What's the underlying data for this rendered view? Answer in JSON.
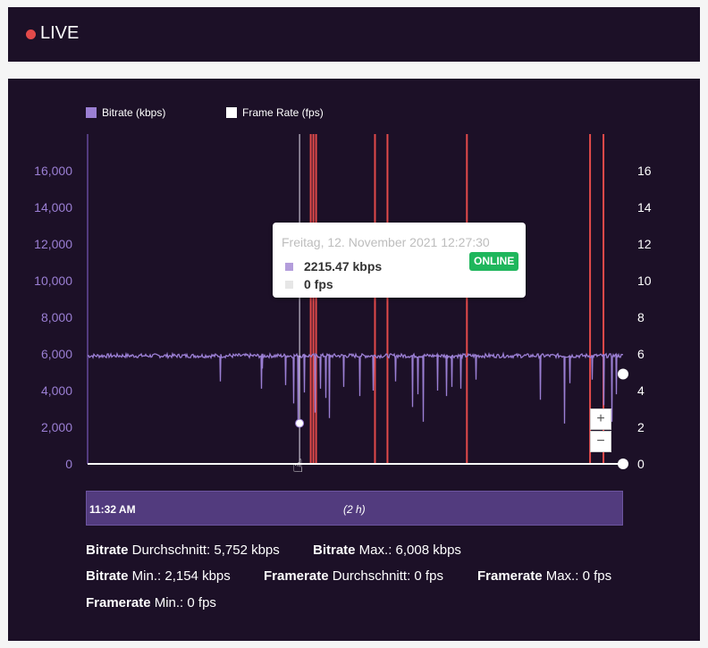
{
  "header": {
    "title": "LIVE",
    "dot_color": "#e24a4a"
  },
  "legend": [
    {
      "label": "Bitrate (kbps)",
      "color": "#9b7fd4"
    },
    {
      "label": "Frame Rate (fps)",
      "color": "#ffffff"
    }
  ],
  "colors": {
    "panel_bg": "#1c1027",
    "bitrate": "#9b7fd4",
    "event_line": "#e24a4a",
    "online_badge": "#1fb65c",
    "navigator": "#523b7e"
  },
  "chart_data": {
    "type": "line",
    "y_left": {
      "ticks": [
        "0",
        "2,000",
        "4,000",
        "6,000",
        "8,000",
        "10,000",
        "12,000",
        "14,000",
        "16,000"
      ],
      "range": [
        0,
        18000
      ],
      "tick_values": [
        0,
        2000,
        4000,
        6000,
        8000,
        10000,
        12000,
        14000,
        16000
      ]
    },
    "y_right": {
      "ticks": [
        "0",
        "2",
        "4",
        "6",
        "8",
        "10",
        "12",
        "14",
        "16"
      ],
      "range": [
        0,
        18
      ],
      "tick_values": [
        0,
        2,
        4,
        6,
        8,
        10,
        12,
        14,
        16
      ]
    },
    "x_range_minutes": [
      0,
      120
    ],
    "series": [
      {
        "name": "Bitrate (kbps)",
        "axis": "left",
        "baseline": 5900,
        "dips": [
          {
            "t": 38.9,
            "v": 4100
          },
          {
            "t": 44.3,
            "v": 4300
          },
          {
            "t": 46.1,
            "v": 3300
          },
          {
            "t": 47.0,
            "v": 2215
          },
          {
            "t": 48.4,
            "v": 3900
          },
          {
            "t": 50.8,
            "v": 2800
          },
          {
            "t": 52.0,
            "v": 4100
          },
          {
            "t": 54.0,
            "v": 2500
          },
          {
            "t": 53.2,
            "v": 3600
          },
          {
            "t": 57.2,
            "v": 4200
          },
          {
            "t": 61.0,
            "v": 3700
          },
          {
            "t": 64.0,
            "v": 4000
          },
          {
            "t": 69.0,
            "v": 4500
          },
          {
            "t": 72.8,
            "v": 3100
          },
          {
            "t": 73.9,
            "v": 3800
          },
          {
            "t": 75.1,
            "v": 2300
          },
          {
            "t": 78.4,
            "v": 4000
          },
          {
            "t": 80.3,
            "v": 3700
          },
          {
            "t": 81.6,
            "v": 4200
          },
          {
            "t": 83.6,
            "v": 4100
          },
          {
            "t": 87.0,
            "v": 4600
          },
          {
            "t": 101.4,
            "v": 3500
          },
          {
            "t": 106.8,
            "v": 2200
          },
          {
            "t": 113.0,
            "v": 4600
          },
          {
            "t": 115.6,
            "v": 3200
          },
          {
            "t": 117.3,
            "v": 2300
          },
          {
            "t": 118.3,
            "v": 3800
          },
          {
            "t": 29.6,
            "v": 4500
          },
          {
            "t": 39.0,
            "v": 5200
          },
          {
            "t": 108.0,
            "v": 4400
          }
        ]
      },
      {
        "name": "Frame Rate (fps)",
        "axis": "right",
        "values": [
          0,
          0
        ]
      }
    ],
    "events_minutes": [
      50.0,
      50.6,
      51.2,
      64.4,
      67.2,
      85.0,
      112.6,
      115.6
    ],
    "hover_minutes": 47.5,
    "bitrate_end_value": 4900
  },
  "tooltip": {
    "date": "Freitag, 12. November 2021 12:27:30",
    "bitrate": "2215.47 kbps",
    "fps": "0 fps",
    "badge": "ONLINE"
  },
  "zoom": {
    "plus": "+",
    "minus": "−"
  },
  "navigator": {
    "start_time": "11:32 AM",
    "duration": "(2 h)"
  },
  "stats": {
    "bitrate_label": "Bitrate",
    "avg_label": " Durchschnitt: ",
    "bitrate_avg": "5,752 kbps",
    "max_label": " Max.: ",
    "bitrate_max": "6,008 kbps",
    "min_label": " Min.: ",
    "bitrate_min": "2,154 kbps",
    "framerate_label": "Framerate",
    "framerate_avg": "0 fps",
    "framerate_max": "0 fps",
    "framerate_min": "0 fps"
  }
}
